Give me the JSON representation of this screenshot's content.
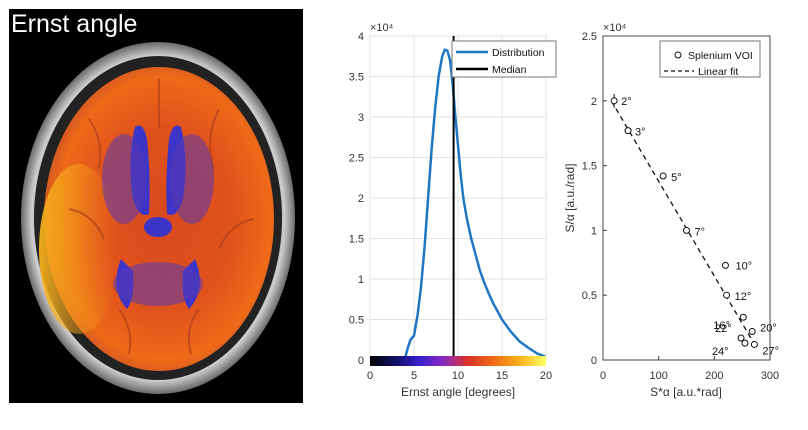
{
  "brain": {
    "title": "Ernst angle"
  },
  "chart_data": [
    {
      "type": "line",
      "xlabel": "Ernst angle [degrees]",
      "ylabel": "",
      "exponent_label": "×10⁴",
      "xlim": [
        0,
        20
      ],
      "ylim": [
        0,
        40000
      ],
      "xticks": [
        "0",
        "5",
        "10",
        "15",
        "20"
      ],
      "yticks": [
        "0",
        "0.5",
        "1",
        "1.5",
        "2",
        "2.5",
        "3",
        "3.5",
        "4"
      ],
      "grid": true,
      "legend": "top-right",
      "colorbar": true,
      "series": [
        {
          "name": "Distribution",
          "color": "#1f77c4",
          "x": [
            3.5,
            4.0,
            4.3,
            4.6,
            5.0,
            5.4,
            5.8,
            6.2,
            6.6,
            7.0,
            7.4,
            7.8,
            8.2,
            8.5,
            8.8,
            9.1,
            9.4,
            9.7,
            10.0,
            10.3,
            10.6,
            11.0,
            11.5,
            12.0,
            12.5,
            13.0,
            13.5,
            14.0,
            15.0,
            16.0,
            17.0,
            18.0,
            19.0,
            20.0
          ],
          "y": [
            0,
            300,
            1500,
            2500,
            3000,
            5500,
            9000,
            14000,
            20000,
            26000,
            31000,
            35000,
            37500,
            38300,
            38200,
            37000,
            34000,
            30000,
            26500,
            23000,
            20000,
            17500,
            15000,
            13000,
            11000,
            9500,
            8200,
            7000,
            5000,
            3500,
            2300,
            1500,
            800,
            400
          ]
        },
        {
          "name": "Median",
          "color": "#000000",
          "x": [
            9.5,
            9.5
          ],
          "y": [
            0,
            40000
          ]
        }
      ]
    },
    {
      "type": "scatter",
      "xlabel": "S*α [a.u.*rad]",
      "ylabel": "S/α [a.u./rad]",
      "exponent_label": "×10⁴",
      "xlim": [
        0,
        300
      ],
      "ylim": [
        0,
        25000
      ],
      "xticks": [
        "0",
        "100",
        "200",
        "300"
      ],
      "yticks": [
        "0",
        "0.5",
        "1",
        "1.5",
        "2",
        "2.5"
      ],
      "grid": false,
      "legend": "top-right",
      "series": [
        {
          "name": "Splenium VOI",
          "x": [
            20,
            45,
            108,
            150,
            220,
            222,
            252,
            248,
            255,
            268,
            272
          ],
          "y": [
            20000,
            17700,
            14200,
            10000,
            7300,
            5000,
            3300,
            1700,
            1300,
            2200,
            1200
          ],
          "point_labels": [
            "2°",
            "3°",
            "5°",
            "7°",
            "10°",
            "12°",
            "16°",
            "22°",
            "24°",
            "20°",
            "27°"
          ]
        },
        {
          "name": "Linear fit",
          "x": [
            15,
            275
          ],
          "y": [
            20000,
            1000
          ]
        }
      ]
    }
  ]
}
